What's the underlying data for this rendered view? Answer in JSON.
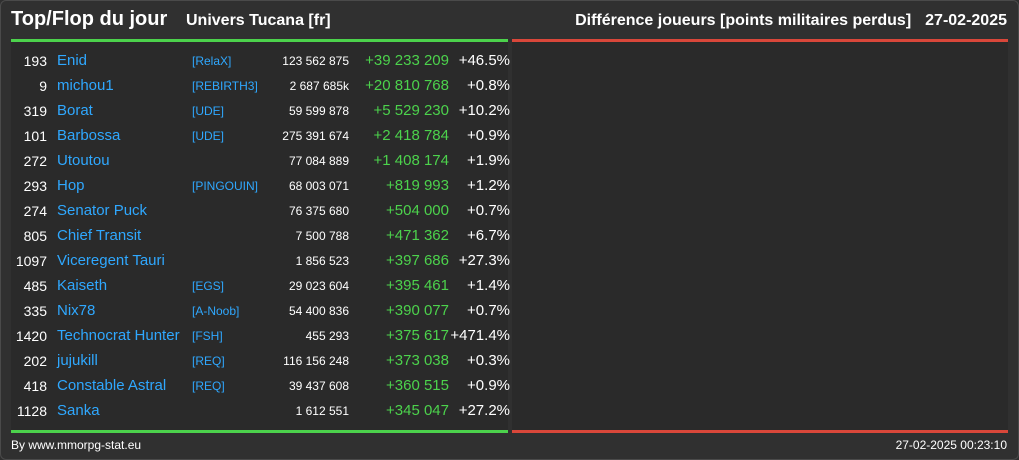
{
  "header": {
    "title": "Top/Flop du jour",
    "universe": "Univers Tucana [fr]",
    "metric": "Différence joueurs [points militaires perdus]",
    "date": "27-02-2025"
  },
  "colors": {
    "accent_positive": "#4cd24c",
    "accent_negative": "#d9473a",
    "link": "#2fa8ff",
    "background": "#303030"
  },
  "rows": [
    {
      "rank": "193",
      "name": "Enid",
      "alliance": "[RelaX]",
      "points": "123 562 875",
      "diff": "+39 233 209",
      "pct": "+46.5%"
    },
    {
      "rank": "9",
      "name": "michou1",
      "alliance": "[REBIRTH3]",
      "points": "2 687 685k",
      "diff": "+20 810 768",
      "pct": "+0.8%"
    },
    {
      "rank": "319",
      "name": "Borat",
      "alliance": "[UDE]",
      "points": "59 599 878",
      "diff": "+5 529 230",
      "pct": "+10.2%"
    },
    {
      "rank": "101",
      "name": "Barbossa",
      "alliance": "[UDE]",
      "points": "275 391 674",
      "diff": "+2 418 784",
      "pct": "+0.9%"
    },
    {
      "rank": "272",
      "name": "Utoutou",
      "alliance": "",
      "points": "77 084 889",
      "diff": "+1 408 174",
      "pct": "+1.9%"
    },
    {
      "rank": "293",
      "name": "Hop",
      "alliance": "[PINGOUIN]",
      "points": "68 003 071",
      "diff": "+819 993",
      "pct": "+1.2%"
    },
    {
      "rank": "274",
      "name": "Senator Puck",
      "alliance": "",
      "points": "76 375 680",
      "diff": "+504 000",
      "pct": "+0.7%"
    },
    {
      "rank": "805",
      "name": "Chief Transit",
      "alliance": "",
      "points": "7 500 788",
      "diff": "+471 362",
      "pct": "+6.7%"
    },
    {
      "rank": "1097",
      "name": "Viceregent Tauri",
      "alliance": "",
      "points": "1 856 523",
      "diff": "+397 686",
      "pct": "+27.3%"
    },
    {
      "rank": "485",
      "name": "Kaiseth",
      "alliance": "[EGS]",
      "points": "29 023 604",
      "diff": "+395 461",
      "pct": "+1.4%"
    },
    {
      "rank": "335",
      "name": "Nix78",
      "alliance": "[A-Noob]",
      "points": "54 400 836",
      "diff": "+390 077",
      "pct": "+0.7%"
    },
    {
      "rank": "1420",
      "name": "Technocrat Hunter",
      "alliance": "[FSH]",
      "points": "455 293",
      "diff": "+375 617",
      "pct": "+471.4%"
    },
    {
      "rank": "202",
      "name": "jujukill",
      "alliance": "[REQ]",
      "points": "116 156 248",
      "diff": "+373 038",
      "pct": "+0.3%"
    },
    {
      "rank": "418",
      "name": "Constable Astral",
      "alliance": "[REQ]",
      "points": "39 437 608",
      "diff": "+360 515",
      "pct": "+0.9%"
    },
    {
      "rank": "1128",
      "name": "Sanka",
      "alliance": "",
      "points": "1 612 551",
      "diff": "+345 047",
      "pct": "+27.2%"
    }
  ],
  "footer": {
    "credit": "By www.mmorpg-stat.eu",
    "timestamp": "27-02-2025 00:23:10"
  }
}
